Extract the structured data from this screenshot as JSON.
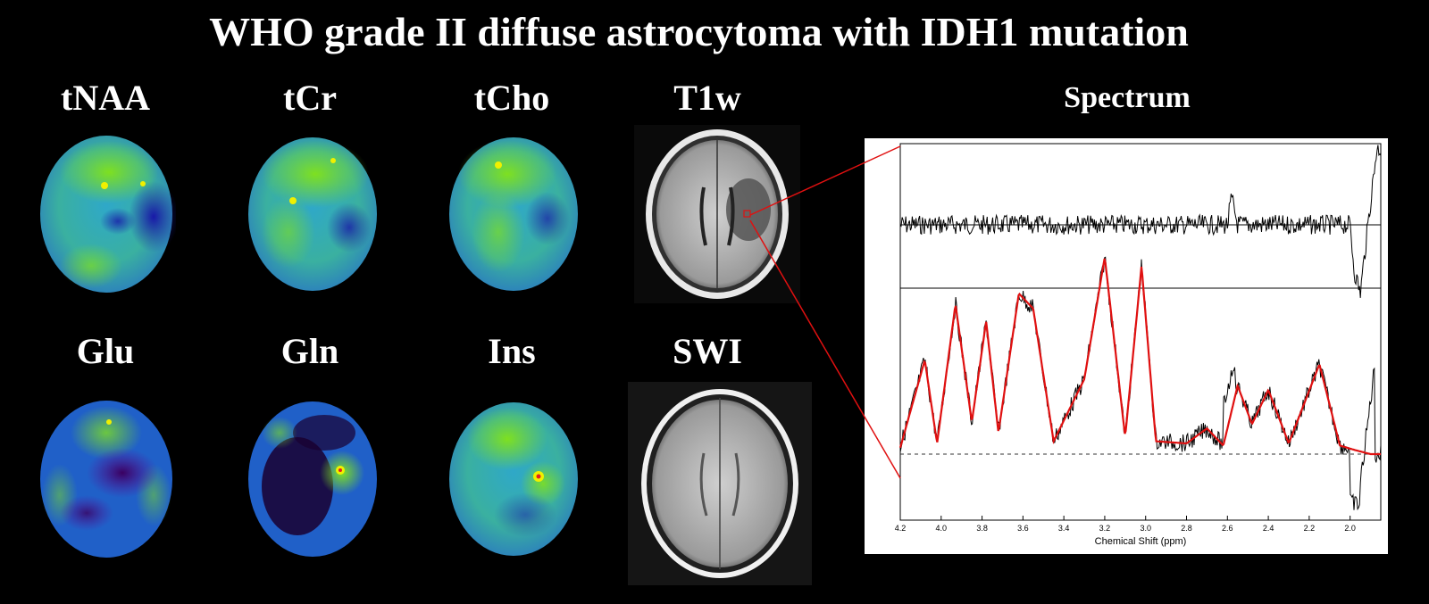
{
  "title": "WHO grade II diffuse astrocytoma with IDH1 mutation",
  "maps_top": [
    "tNAA",
    "tCr",
    "tCho"
  ],
  "maps_bottom": [
    "Glu",
    "Gln",
    "Ins"
  ],
  "anatomical": [
    "T1w",
    "SWI"
  ],
  "spectrum_title": "Spectrum",
  "colors": {
    "map_low": "#1a1aa0",
    "map_mid": "#3aa6c8",
    "map_high": "#44c820",
    "map_peak": "#f0f000",
    "fit_line": "#e01010",
    "zoom_line": "#e01010"
  },
  "chart_data": {
    "type": "line",
    "xlabel": "Chemical Shift (ppm)",
    "x_ticks": [
      "4.2",
      "4.0",
      "3.8",
      "3.6",
      "3.4",
      "3.2",
      "3.0",
      "2.8",
      "2.6",
      "2.4",
      "2.2",
      "2.0"
    ],
    "xlim": [
      4.2,
      1.85
    ],
    "x_reversed": true,
    "series": [
      {
        "role": "residual",
        "color": "#000000",
        "x": [
          4.2,
          3.8,
          3.4,
          3.0,
          2.6,
          2.58,
          2.55,
          2.2,
          2.0,
          1.98,
          1.95,
          1.9,
          1.87
        ],
        "y": [
          0.0,
          0.0,
          0.0,
          0.0,
          0.0,
          0.35,
          0.0,
          0.0,
          0.0,
          -0.6,
          -0.9,
          0.3,
          1.0
        ]
      },
      {
        "role": "fit",
        "color": "#e01010",
        "x": [
          4.2,
          4.08,
          4.02,
          3.93,
          3.85,
          3.78,
          3.72,
          3.62,
          3.55,
          3.45,
          3.3,
          3.2,
          3.1,
          3.02,
          2.95,
          2.8,
          2.7,
          2.62,
          2.55,
          2.48,
          2.4,
          2.3,
          2.15,
          2.05,
          1.98,
          1.9,
          1.85
        ],
        "y": [
          0.03,
          0.44,
          0.05,
          0.7,
          0.15,
          0.62,
          0.1,
          0.75,
          0.68,
          0.06,
          0.35,
          0.92,
          0.08,
          0.88,
          0.06,
          0.05,
          0.12,
          0.04,
          0.32,
          0.14,
          0.3,
          0.05,
          0.42,
          0.04,
          0.02,
          0.0,
          0.0
        ]
      }
    ]
  }
}
